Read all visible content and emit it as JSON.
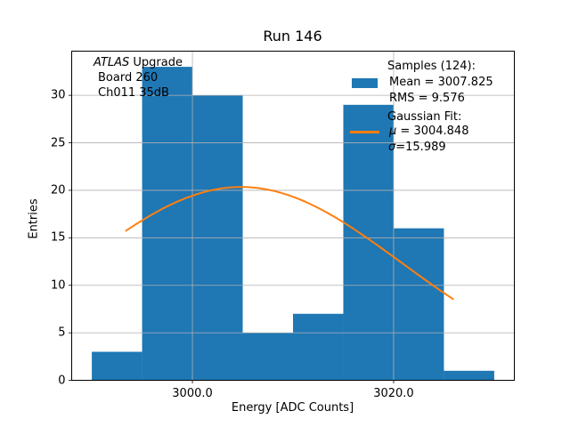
{
  "chart_data": {
    "type": "bar",
    "title": "Run 146",
    "xlabel": "Energy [ADC Counts]",
    "ylabel": "Entries",
    "bin_edges": [
      2990,
      2995,
      3000,
      3005,
      3010,
      3015,
      3020,
      3025,
      3030
    ],
    "counts": [
      3,
      33,
      30,
      5,
      7,
      29,
      16,
      1
    ],
    "n_samples": 124,
    "xlim": [
      2988,
      3032
    ],
    "ylim": [
      0,
      34.65
    ],
    "xticks": [
      3000,
      3020
    ],
    "xtick_labels": [
      "3000.0",
      "3020.0"
    ],
    "yticks": [
      0,
      5,
      10,
      15,
      20,
      25,
      30
    ],
    "grid": true,
    "legend_position": "upper right, frameless",
    "fit": {
      "type": "gaussian",
      "mu": 3004.848,
      "sigma": 15.989,
      "amplitude": 20.35,
      "x_range": [
        2993.4,
        3025.9
      ]
    },
    "colors": {
      "bar": "#1f77b4",
      "fit_line": "#ff7f0e",
      "grid": "#b0b0b0",
      "spine": "#000000"
    },
    "annotation": {
      "experiment": "ATLAS",
      "line1_rest": " Upgrade",
      "line2": "Board 260",
      "line3": "Ch011 35dB"
    },
    "legend": {
      "samples_header": "Samples (124):",
      "mean_label": "Mean = 3007.825",
      "rms_label": "RMS = 9.576",
      "fit_header": "Gaussian Fit:",
      "mu_symbol": "μ",
      "mu_rest": " = 3004.848",
      "sigma_symbol": "σ",
      "sigma_rest": "=15.989"
    }
  }
}
